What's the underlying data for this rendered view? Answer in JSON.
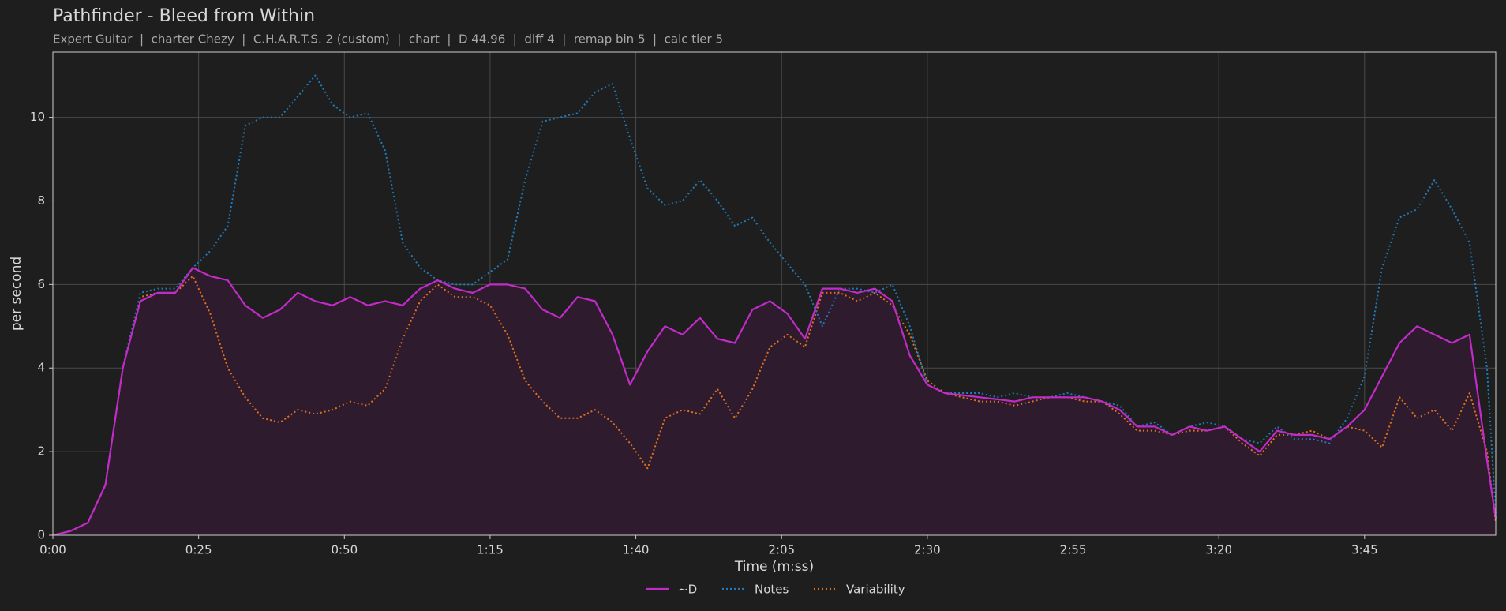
{
  "chart_data": {
    "type": "line",
    "title": "Pathfinder - Bleed from Within",
    "subtitle": "Expert Guitar  |  charter Chezy  |  C.H.A.R.T.S. 2 (custom)  |  chart  |  D 44.96  |  diff 4  |  remap bin 5  |  calc tier 5",
    "x_label": "Time (m:ss)",
    "y_label": "per second",
    "x": [
      0,
      3,
      6,
      9,
      12,
      15,
      18,
      21,
      24,
      27,
      30,
      33,
      36,
      39,
      42,
      45,
      48,
      51,
      54,
      57,
      60,
      63,
      66,
      69,
      72,
      75,
      78,
      81,
      84,
      87,
      90,
      93,
      96,
      99,
      102,
      105,
      108,
      111,
      114,
      117,
      120,
      123,
      126,
      129,
      132,
      135,
      138,
      141,
      144,
      147,
      150,
      153,
      156,
      159,
      162,
      165,
      168,
      171,
      174,
      177,
      180,
      183,
      186,
      189,
      192,
      195,
      198,
      201,
      204,
      207,
      210,
      213,
      216,
      219,
      222,
      225,
      228,
      231,
      234,
      237,
      240,
      243,
      246,
      247.5
    ],
    "series": [
      {
        "name": "~D",
        "color": "#c22bc8",
        "style": "solid",
        "fill": "#2e1b2d",
        "values": [
          0,
          0.1,
          0.3,
          1.2,
          4.0,
          5.6,
          5.8,
          5.8,
          6.4,
          6.2,
          6.1,
          5.5,
          5.2,
          5.4,
          5.8,
          5.6,
          5.5,
          5.7,
          5.5,
          5.6,
          5.5,
          5.9,
          6.1,
          5.9,
          5.8,
          6.0,
          6.0,
          5.9,
          5.4,
          5.2,
          5.7,
          5.6,
          4.8,
          3.6,
          4.4,
          5.0,
          4.8,
          5.2,
          4.7,
          4.6,
          5.4,
          5.6,
          5.3,
          4.7,
          5.9,
          5.9,
          5.8,
          5.9,
          5.6,
          4.3,
          3.6,
          3.4,
          3.35,
          3.3,
          3.25,
          3.2,
          3.3,
          3.3,
          3.3,
          3.3,
          3.2,
          3.0,
          2.6,
          2.6,
          2.4,
          2.6,
          2.5,
          2.6,
          2.3,
          2.0,
          2.5,
          2.4,
          2.4,
          2.3,
          2.6,
          3.0,
          3.8,
          4.6,
          5.0,
          4.8,
          4.6,
          4.8,
          1.8,
          0.4
        ]
      },
      {
        "name": "Notes",
        "color": "#1f7ab8",
        "style": "dotted",
        "values": [
          0,
          0.1,
          0.3,
          1.2,
          4.0,
          5.8,
          5.9,
          5.9,
          6.4,
          6.8,
          7.4,
          9.8,
          10.0,
          10.0,
          10.5,
          11.0,
          10.3,
          10.0,
          10.1,
          9.2,
          7.0,
          6.4,
          6.1,
          6.0,
          6.0,
          6.3,
          6.6,
          8.5,
          9.9,
          10.0,
          10.1,
          10.6,
          10.8,
          9.5,
          8.3,
          7.9,
          8.0,
          8.5,
          8.0,
          7.4,
          7.6,
          7.0,
          6.5,
          6.0,
          5.0,
          5.9,
          5.9,
          5.8,
          6.0,
          5.0,
          3.6,
          3.4,
          3.4,
          3.4,
          3.3,
          3.4,
          3.3,
          3.3,
          3.4,
          3.3,
          3.2,
          3.1,
          2.6,
          2.7,
          2.4,
          2.6,
          2.7,
          2.6,
          2.3,
          2.2,
          2.6,
          2.3,
          2.3,
          2.2,
          2.8,
          3.8,
          6.4,
          7.6,
          7.8,
          8.5,
          7.8,
          7.0,
          4.0,
          0.5
        ]
      },
      {
        "name": "Variability",
        "color": "#e0701e",
        "style": "dotted",
        "values": [
          0,
          0.1,
          0.3,
          1.2,
          4.0,
          5.7,
          5.8,
          5.8,
          6.2,
          5.3,
          4.0,
          3.3,
          2.8,
          2.7,
          3.0,
          2.9,
          3.0,
          3.2,
          3.1,
          3.5,
          4.7,
          5.6,
          6.0,
          5.7,
          5.7,
          5.5,
          4.8,
          3.7,
          3.2,
          2.8,
          2.8,
          3.0,
          2.7,
          2.2,
          1.6,
          2.8,
          3.0,
          2.9,
          3.5,
          2.8,
          3.5,
          4.5,
          4.8,
          4.5,
          5.8,
          5.8,
          5.6,
          5.8,
          5.5,
          4.8,
          3.7,
          3.4,
          3.3,
          3.2,
          3.2,
          3.1,
          3.2,
          3.3,
          3.3,
          3.2,
          3.2,
          2.9,
          2.5,
          2.5,
          2.4,
          2.5,
          2.5,
          2.6,
          2.2,
          1.9,
          2.4,
          2.4,
          2.5,
          2.3,
          2.6,
          2.5,
          2.1,
          3.3,
          2.8,
          3.0,
          2.5,
          3.4,
          2.0,
          0.3
        ]
      }
    ],
    "xlim": [
      0,
      247.5
    ],
    "ylim": [
      0,
      11.56
    ],
    "xticks": [
      {
        "value": 0,
        "label": "0:00"
      },
      {
        "value": 25,
        "label": "0:25"
      },
      {
        "value": 50,
        "label": "0:50"
      },
      {
        "value": 75,
        "label": "1:15"
      },
      {
        "value": 100,
        "label": "1:40"
      },
      {
        "value": 125,
        "label": "2:05"
      },
      {
        "value": 150,
        "label": "2:30"
      },
      {
        "value": 175,
        "label": "2:55"
      },
      {
        "value": 200,
        "label": "3:20"
      },
      {
        "value": 225,
        "label": "3:45"
      }
    ],
    "yticks": [
      0,
      2,
      4,
      6,
      8,
      10
    ],
    "grid": true,
    "legend": "bottom"
  }
}
